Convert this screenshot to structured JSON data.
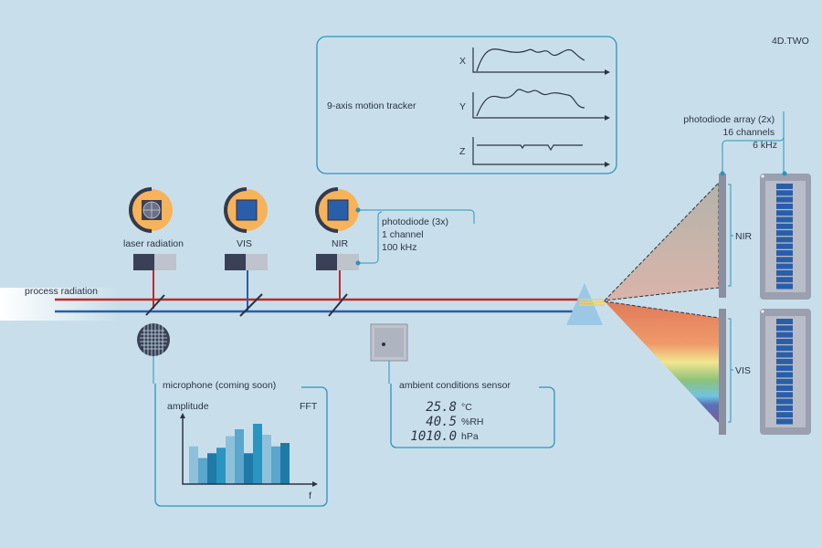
{
  "brand": "4D.TWO",
  "process_radiation_label": "process radiation",
  "motion_tracker": {
    "label": "9-axis motion tracker",
    "axes": [
      "X",
      "Y",
      "Z"
    ]
  },
  "photodiodes": {
    "items": [
      {
        "label": "laser radiation"
      },
      {
        "label": "VIS"
      },
      {
        "label": "NIR"
      }
    ],
    "info": [
      "photodiode (3x)",
      "1 channel",
      "100 kHz"
    ]
  },
  "photodiode_array": {
    "info": [
      "photodiode array (2x)",
      "16 channels",
      "6 kHz"
    ],
    "bands": [
      "NIR",
      "VIS"
    ]
  },
  "microphone": {
    "label": "microphone (coming soon)",
    "y_label": "amplitude",
    "mode": "FFT",
    "x_label": "f",
    "bars": [
      0.55,
      0.38,
      0.45,
      0.53,
      0.7,
      0.8,
      0.45,
      0.88,
      0.72,
      0.55,
      0.6
    ]
  },
  "ambient_sensor": {
    "label": "ambient conditions sensor",
    "readings": [
      {
        "value": "25.8",
        "unit": "°C"
      },
      {
        "value": "40.5",
        "unit": "%RH"
      },
      {
        "value": "1010.0",
        "unit": "hPa"
      }
    ]
  },
  "colors": {
    "background": "#c8dfeb",
    "accent": "#2e93b8",
    "red_beam": "#c0282c",
    "blue_beam": "#2a5ea8",
    "sensor_orange": "#f6b35b"
  }
}
